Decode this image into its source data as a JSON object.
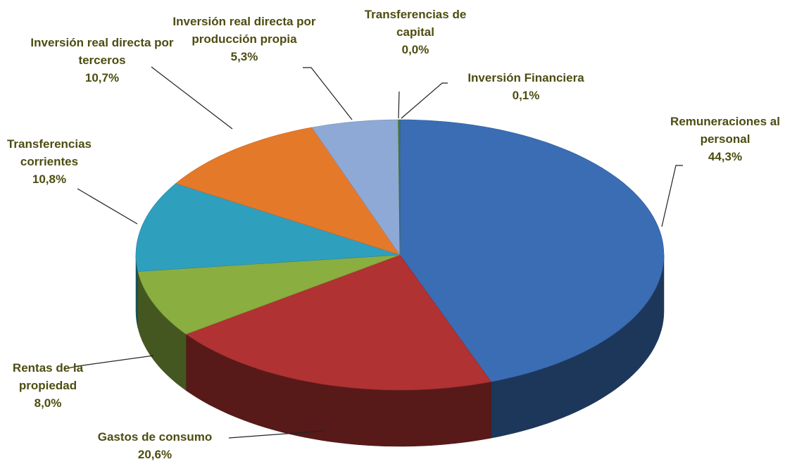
{
  "chart_data": {
    "type": "pie",
    "categories": [
      "Remuneraciones al personal",
      "Gastos de consumo",
      "Rentas de la propiedad",
      "Transferencias corrientes",
      "Inversión real directa por terceros",
      "Inversión real directa por producción propia",
      "Transferencias de capital",
      "Inversión Financiera"
    ],
    "values": [
      44.3,
      20.6,
      8.0,
      10.8,
      10.7,
      5.3,
      0.0,
      0.1
    ],
    "value_labels": [
      "44,3%",
      "20,6%",
      "8,0%",
      "10,8%",
      "10,7%",
      "5,3%",
      "0,0%",
      "0,1%"
    ],
    "colors": [
      "#3a6db4",
      "#b03232",
      "#8aae40",
      "#2f9fbe",
      "#e5792a",
      "#8ea9d6",
      "#c8c870",
      "#4a7a3a"
    ]
  }
}
